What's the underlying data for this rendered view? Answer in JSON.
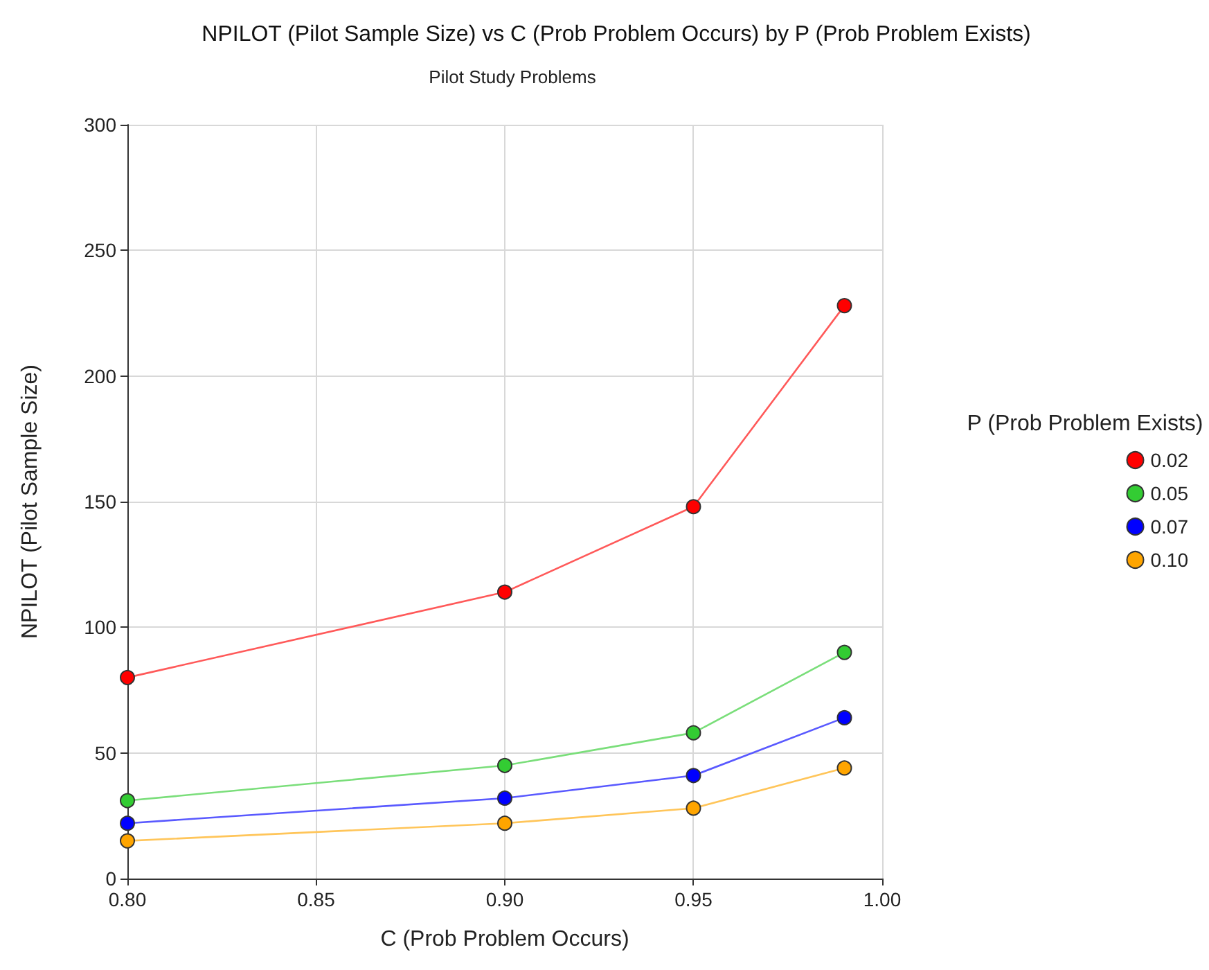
{
  "chart_data": {
    "type": "line",
    "title": "NPILOT (Pilot Sample Size) vs C (Prob Problem Occurs) by P (Prob Problem Exists)",
    "subtitle": "Pilot Study Problems",
    "xlabel": "C (Prob Problem Occurs)",
    "ylabel": "NPILOT (Pilot Sample Size)",
    "legend_title": "P (Prob Problem Exists)",
    "x": [
      0.8,
      0.9,
      0.95,
      0.99
    ],
    "series": [
      {
        "name": "0.02",
        "color": "#ff0000",
        "values": [
          80,
          114,
          148,
          228
        ]
      },
      {
        "name": "0.05",
        "color": "#33cc33",
        "values": [
          31,
          45,
          58,
          90
        ]
      },
      {
        "name": "0.07",
        "color": "#0000ff",
        "values": [
          22,
          32,
          41,
          64
        ]
      },
      {
        "name": "0.10",
        "color": "#ffa500",
        "values": [
          15,
          22,
          28,
          44
        ]
      }
    ],
    "xlim": [
      0.8,
      1.0
    ],
    "xticks": [
      {
        "value": 0.8,
        "label": "0.80"
      },
      {
        "value": 0.85,
        "label": "0.85"
      },
      {
        "value": 0.9,
        "label": "0.90"
      },
      {
        "value": 0.95,
        "label": "0.95"
      },
      {
        "value": 1.0,
        "label": "1.00"
      }
    ],
    "ylim": [
      0,
      300
    ],
    "yticks": [
      0,
      50,
      100,
      150,
      200,
      250,
      300
    ],
    "grid": true,
    "legend": "right",
    "marker": "circle",
    "line_style": "solid"
  }
}
